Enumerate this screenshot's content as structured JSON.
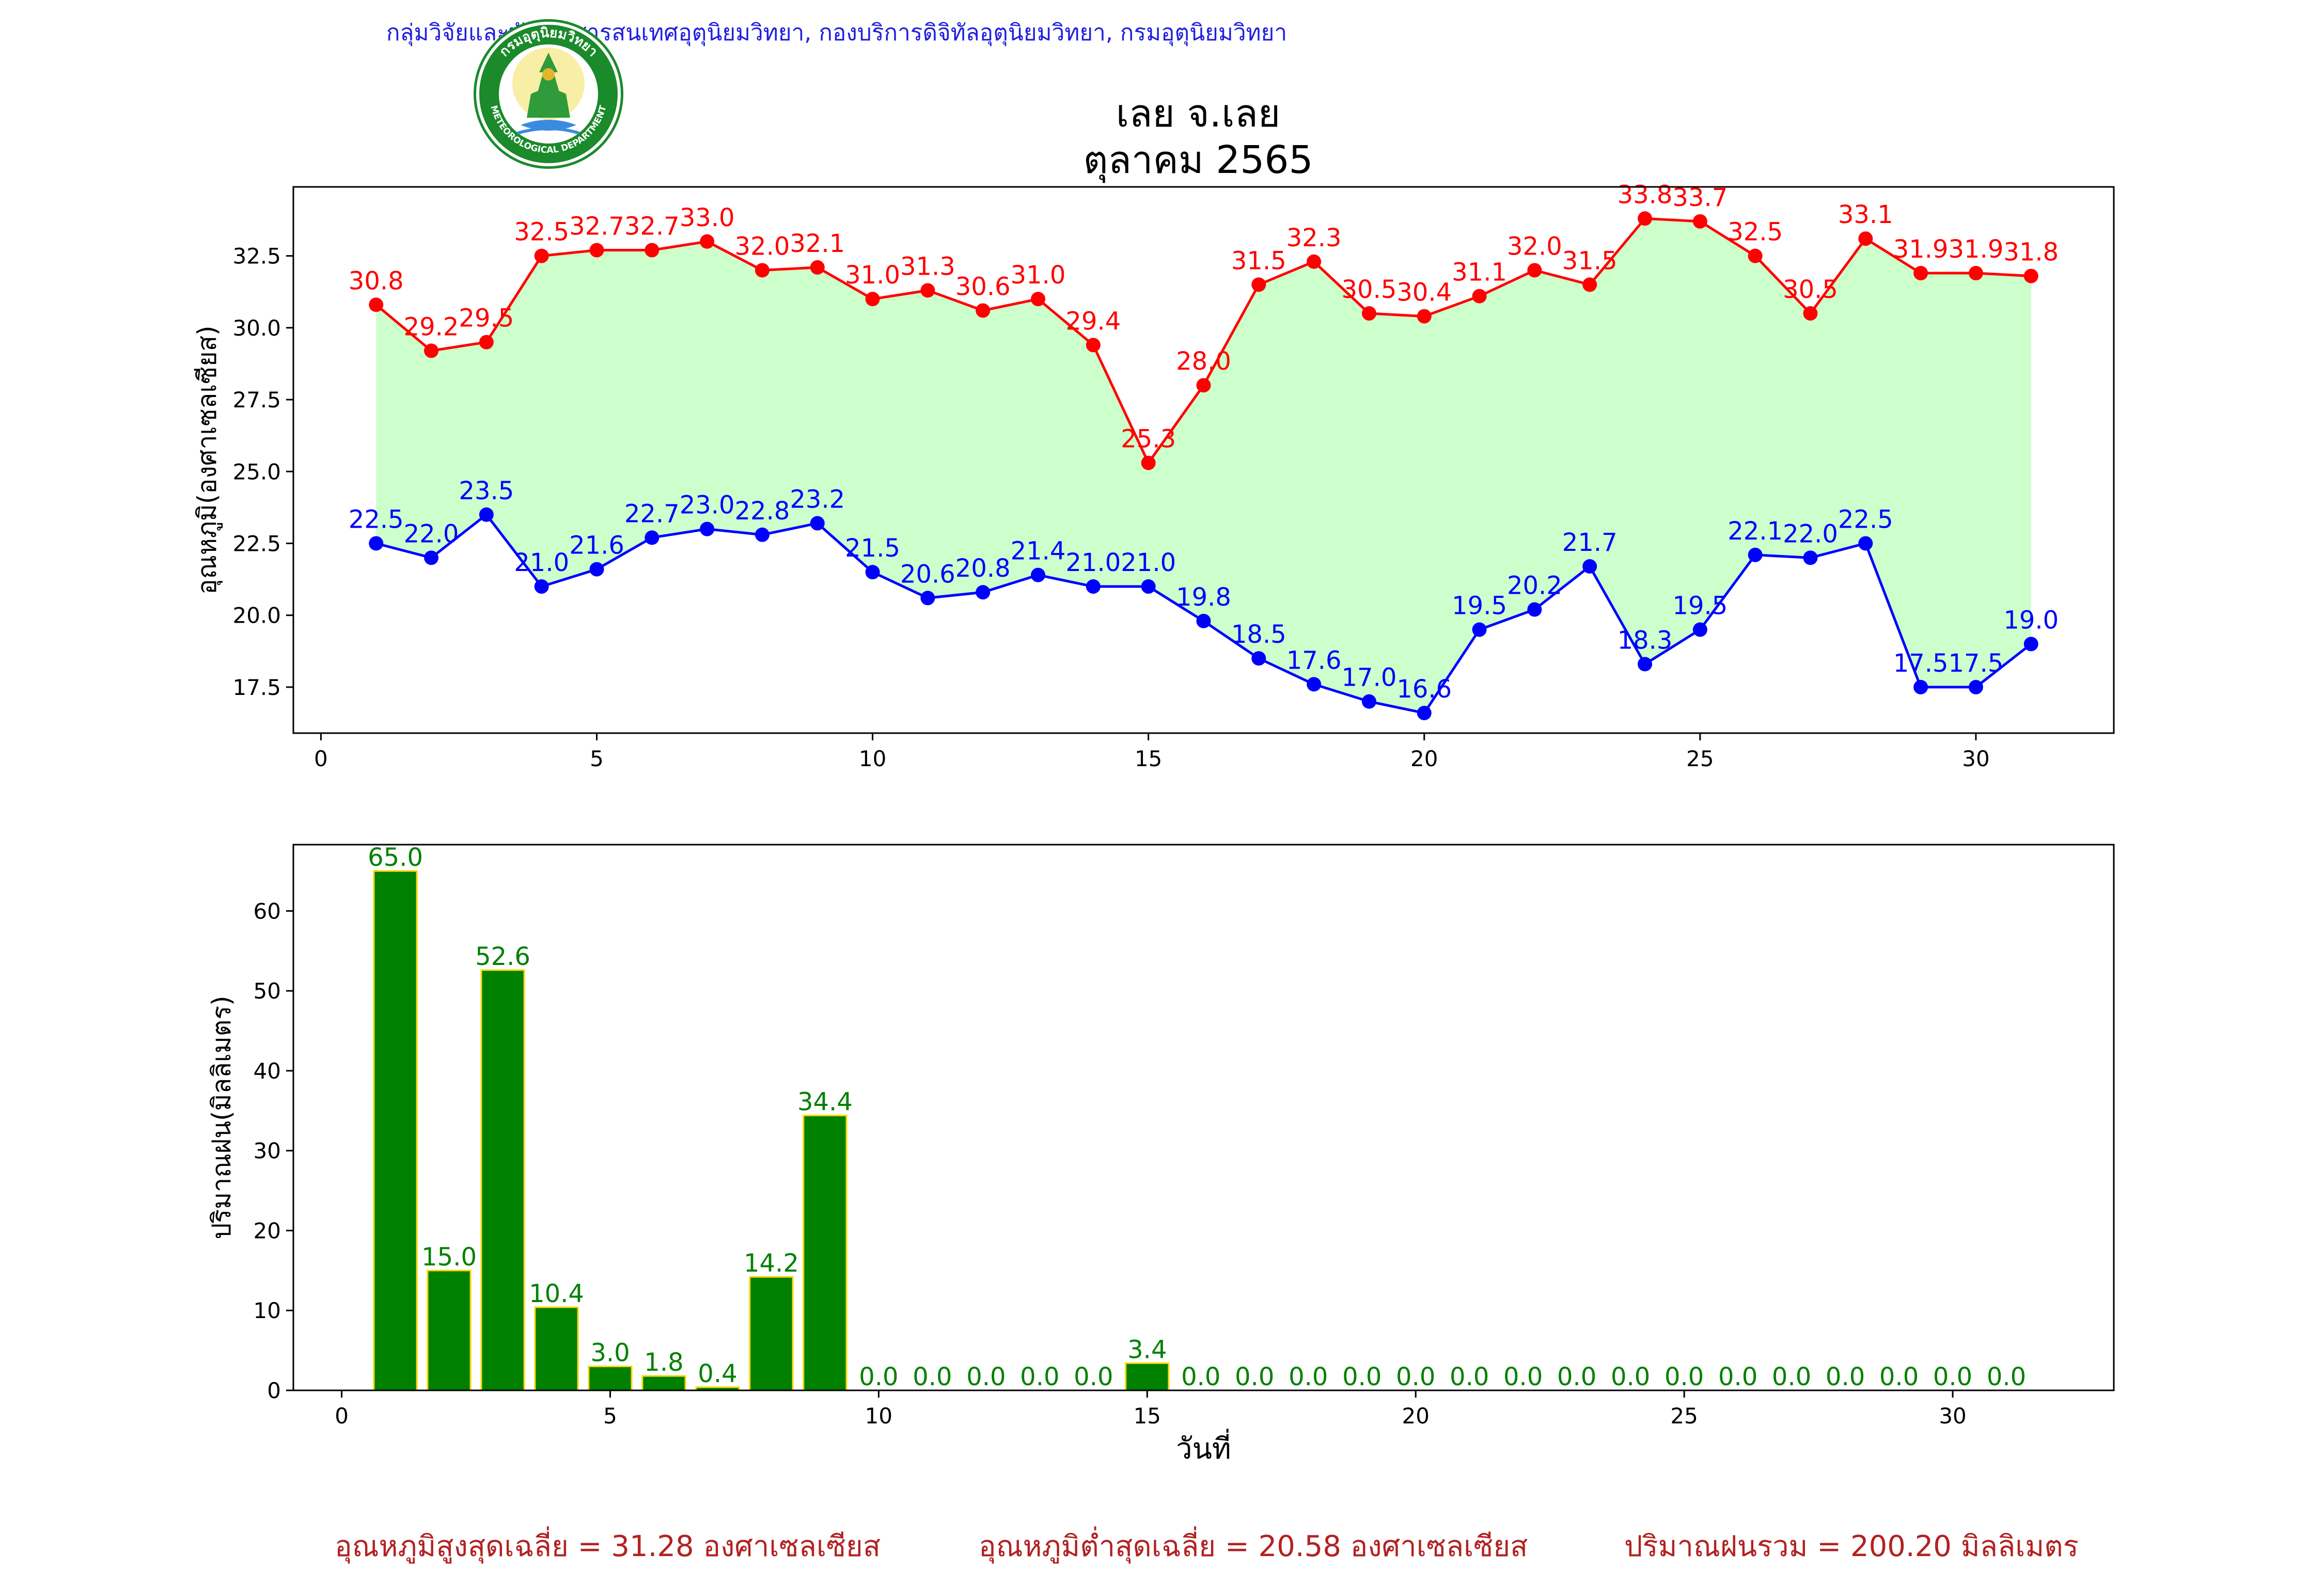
{
  "header": {
    "agency": "กลุ่มวิจัยและพัฒนาสารสนเทศอุตุนิยมวิทยา, กองบริการดิจิทัลอุตุนิยมวิทยา, กรมอุตุนิยมวิทยา",
    "logo_text_top": "กรมอุตุนิยมวิทยา",
    "logo_text_bottom": "METEOROLOGICAL DEPARTMENT",
    "title": "เลย จ.เลย",
    "subtitle": "ตุลาคม 2565"
  },
  "colors": {
    "tmax": "#ff0000",
    "tmin": "#0000ff",
    "fill": "#ccffcc",
    "rain_bar": "#008000",
    "rain_edge": "#ffd700",
    "rain_label": "#008000",
    "footer": "#b22222"
  },
  "chart_data": [
    {
      "type": "line",
      "ylabel": "อุณหภูมิ(องศาเซลเซียส)",
      "xlabel": "",
      "x": [
        1,
        2,
        3,
        4,
        5,
        6,
        7,
        8,
        9,
        10,
        11,
        12,
        13,
        14,
        15,
        16,
        17,
        18,
        19,
        20,
        21,
        22,
        23,
        24,
        25,
        26,
        27,
        28,
        29,
        30,
        31
      ],
      "series": [
        {
          "key": "tmax",
          "values": [
            30.8,
            29.2,
            29.5,
            32.5,
            32.7,
            32.7,
            33.0,
            32.0,
            32.1,
            31.0,
            31.3,
            30.6,
            31.0,
            29.4,
            25.3,
            28.0,
            31.5,
            32.3,
            30.5,
            30.4,
            31.1,
            32.0,
            31.5,
            33.8,
            33.7,
            32.5,
            30.5,
            33.1,
            31.9,
            31.9,
            31.8
          ]
        },
        {
          "key": "tmin",
          "values": [
            22.5,
            22.0,
            23.5,
            21.0,
            21.6,
            22.7,
            23.0,
            22.8,
            23.2,
            21.5,
            20.6,
            20.8,
            21.4,
            21.0,
            21.0,
            19.8,
            18.5,
            17.6,
            17.0,
            16.6,
            19.5,
            20.2,
            21.7,
            18.3,
            19.5,
            22.1,
            22.0,
            22.5,
            17.5,
            17.5,
            19.0
          ]
        }
      ],
      "fill_between": true,
      "xlim": [
        -0.5,
        32.5
      ],
      "ylim": [
        15.9,
        34.9
      ],
      "xticks": [
        0,
        5,
        10,
        15,
        20,
        25,
        30
      ],
      "yticks": [
        17.5,
        20.0,
        22.5,
        25.0,
        27.5,
        30.0,
        32.5
      ],
      "grid": false,
      "legend": "none"
    },
    {
      "type": "bar",
      "ylabel": "ปริมาณฝน(มิลลิเมตร)",
      "xlabel": "วันที่",
      "x": [
        1,
        2,
        3,
        4,
        5,
        6,
        7,
        8,
        9,
        10,
        11,
        12,
        13,
        14,
        15,
        16,
        17,
        18,
        19,
        20,
        21,
        22,
        23,
        24,
        25,
        26,
        27,
        28,
        29,
        30,
        31
      ],
      "values": [
        65.0,
        15.0,
        52.6,
        10.4,
        3.0,
        1.8,
        0.4,
        14.2,
        34.4,
        0.0,
        0.0,
        0.0,
        0.0,
        0.0,
        3.4,
        0.0,
        0.0,
        0.0,
        0.0,
        0.0,
        0.0,
        0.0,
        0.0,
        0.0,
        0.0,
        0.0,
        0.0,
        0.0,
        0.0,
        0.0,
        0.0
      ],
      "xlim": [
        -0.9,
        33.0
      ],
      "ylim": [
        0,
        68.3
      ],
      "xticks": [
        0,
        5,
        10,
        15,
        20,
        25,
        30
      ],
      "yticks": [
        0,
        10,
        20,
        30,
        40,
        50,
        60
      ],
      "grid": false,
      "legend": "none"
    }
  ],
  "footer": {
    "tmax_avg": "อุณหภูมิสูงสุดเฉลี่ย = 31.28 องศาเซลเซียส",
    "tmin_avg": "อุณหภูมิต่ำสุดเฉลี่ย = 20.58 องศาเซลเซียส",
    "rain_total": "ปริมาณฝนรวม = 200.20 มิลลิเมตร"
  }
}
